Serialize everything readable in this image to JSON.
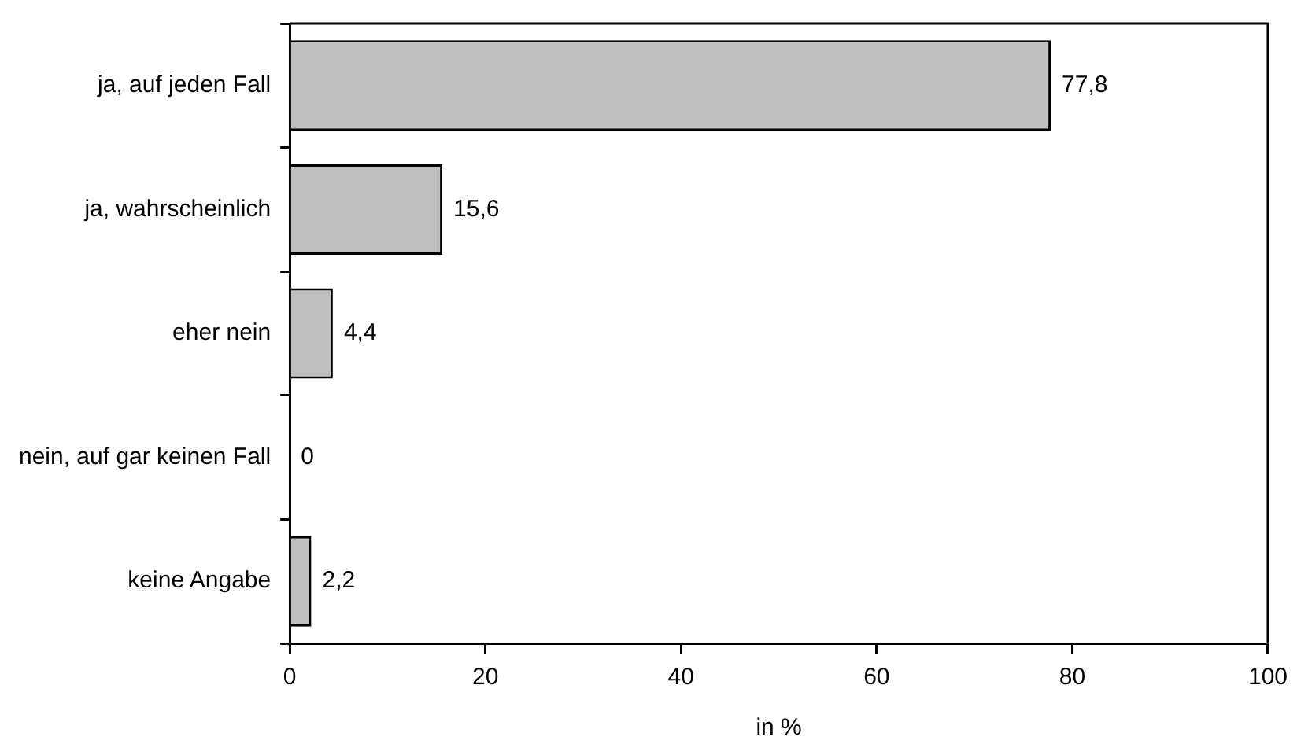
{
  "chart_data": {
    "type": "bar",
    "orientation": "horizontal",
    "categories": [
      "ja, auf jeden Fall",
      "ja, wahrscheinlich",
      "eher nein",
      "nein, auf gar keinen Fall",
      "keine Angabe"
    ],
    "values": [
      77.8,
      15.6,
      4.4,
      0,
      2.2
    ],
    "value_labels": [
      "77,8",
      "15,6",
      "4,4",
      "0",
      "2,2"
    ],
    "color": "#c0c0c0",
    "xlim": [
      0,
      100
    ],
    "xticks": [
      0,
      20,
      40,
      60,
      80,
      100
    ],
    "xlabel": "in %",
    "grid": false
  }
}
